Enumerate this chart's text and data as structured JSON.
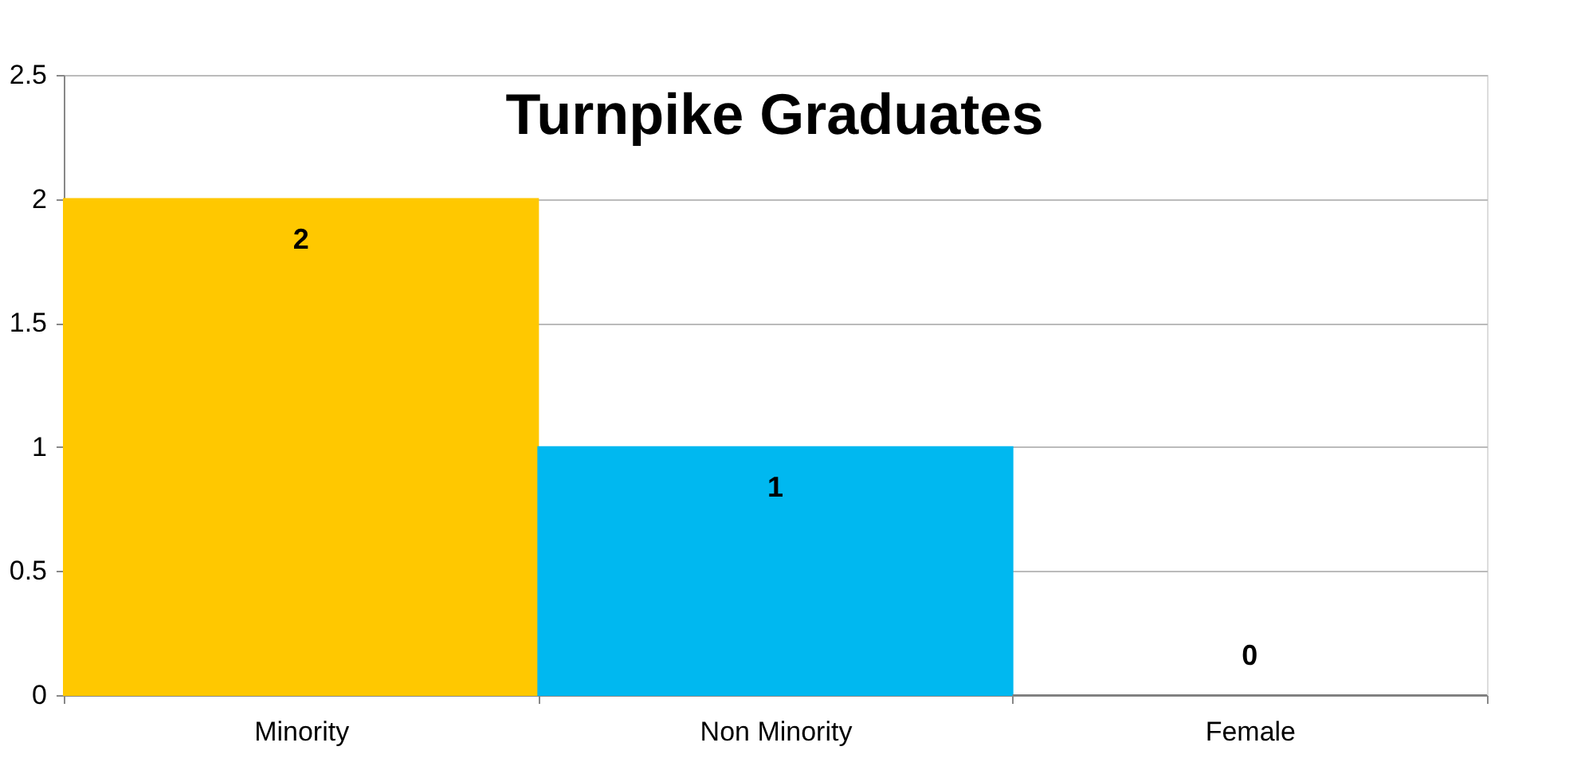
{
  "chart_data": {
    "type": "bar",
    "title": "Turnpike Graduates",
    "categories": [
      "Minority",
      "Non Minority",
      "Female"
    ],
    "values": [
      2,
      1,
      0
    ],
    "colors": [
      "#ffc800",
      "#00b8f0",
      "#7f7f7f"
    ],
    "ylim": [
      0,
      2.5
    ],
    "yticks": [
      0,
      0.5,
      1,
      1.5,
      2,
      2.5
    ],
    "grid": "y",
    "data_labels": true,
    "legend": false
  }
}
